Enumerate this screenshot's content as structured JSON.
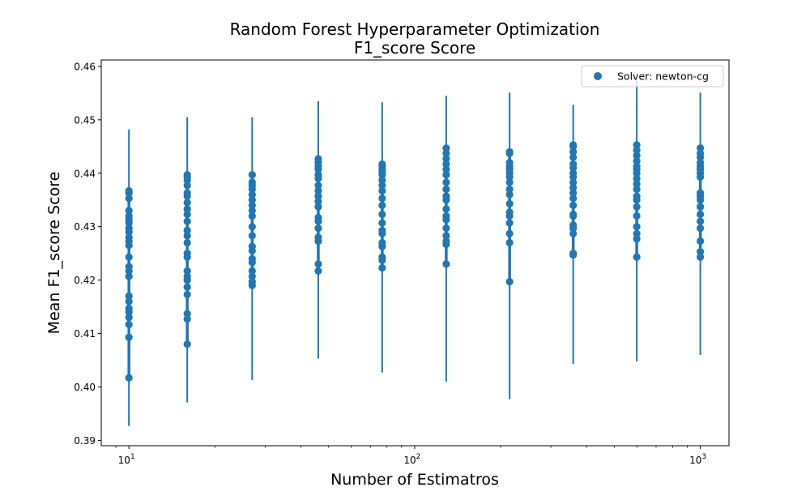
{
  "chart_data": {
    "type": "scatter",
    "title": [
      "Random Forest Hyperparameter Optimization",
      "F1_score Score"
    ],
    "xlabel": "Number of Estimatros",
    "ylabel": "Mean F1_score Score",
    "x_scale": "log",
    "xlim": [
      8,
      1260
    ],
    "ylim": [
      0.389,
      0.4612
    ],
    "y_ticks": [
      0.39,
      0.4,
      0.41,
      0.42,
      0.43,
      0.44,
      0.45,
      0.46
    ],
    "y_tick_labels": [
      "0.39",
      "0.40",
      "0.41",
      "0.42",
      "0.43",
      "0.44",
      "0.45",
      "0.46"
    ],
    "x_major_ticks": [
      10,
      100,
      1000
    ],
    "x_major_tick_labels": [
      {
        "base": "10",
        "exp": "1"
      },
      {
        "base": "10",
        "exp": "2"
      },
      {
        "base": "10",
        "exp": "3"
      }
    ],
    "x_minor_ticks": [
      9,
      20,
      30,
      40,
      50,
      60,
      70,
      80,
      90,
      200,
      300,
      400,
      500,
      600,
      700,
      800,
      900
    ],
    "legend": {
      "position": "top-right",
      "label": "Solver: newton-cg"
    },
    "color": "#1f77b4",
    "grid": false,
    "series": [
      {
        "name": "Solver: newton-cg",
        "groups": [
          {
            "x": 10,
            "y_min": 0.3927,
            "y_max": 0.4482,
            "y": [
              0.4017,
              0.4093,
              0.4117,
              0.413,
              0.414,
              0.4147,
              0.416,
              0.417,
              0.4207,
              0.4217,
              0.4225,
              0.4243,
              0.4265,
              0.4273,
              0.428,
              0.429,
              0.4297,
              0.4307,
              0.4313,
              0.432,
              0.433,
              0.4353,
              0.4363,
              0.4367
            ]
          },
          {
            "x": 16,
            "y_min": 0.3971,
            "y_max": 0.4505,
            "y": [
              0.408,
              0.4127,
              0.4137,
              0.4173,
              0.4187,
              0.42,
              0.4207,
              0.4217,
              0.4243,
              0.425,
              0.427,
              0.4283,
              0.4293,
              0.431,
              0.4323,
              0.4333,
              0.4345,
              0.4357,
              0.4363,
              0.4377,
              0.4387,
              0.4393,
              0.4397
            ]
          },
          {
            "x": 27,
            "y_min": 0.4013,
            "y_max": 0.4505,
            "y": [
              0.419,
              0.4197,
              0.4207,
              0.4217,
              0.4233,
              0.424,
              0.4255,
              0.4263,
              0.4283,
              0.43,
              0.432,
              0.433,
              0.434,
              0.435,
              0.436,
              0.437,
              0.4377,
              0.4383,
              0.4397
            ]
          },
          {
            "x": 46,
            "y_min": 0.4053,
            "y_max": 0.4535,
            "y": [
              0.4217,
              0.423,
              0.4273,
              0.428,
              0.4297,
              0.431,
              0.4317,
              0.4337,
              0.4347,
              0.4357,
              0.4367,
              0.4377,
              0.439,
              0.4397,
              0.4407,
              0.4413,
              0.442,
              0.4427
            ]
          },
          {
            "x": 77,
            "y_min": 0.4027,
            "y_max": 0.4533,
            "y": [
              0.4223,
              0.4237,
              0.4243,
              0.4263,
              0.427,
              0.4287,
              0.4293,
              0.4307,
              0.4323,
              0.434,
              0.4353,
              0.4367,
              0.4377,
              0.4387,
              0.4397,
              0.4403,
              0.4407,
              0.4413,
              0.4417
            ]
          },
          {
            "x": 129,
            "y_min": 0.401,
            "y_max": 0.4545,
            "y": [
              0.423,
              0.4267,
              0.4273,
              0.4283,
              0.4297,
              0.4313,
              0.432,
              0.4333,
              0.435,
              0.4357,
              0.437,
              0.4383,
              0.4397,
              0.4407,
              0.4417,
              0.4427,
              0.4437,
              0.4447
            ]
          },
          {
            "x": 215,
            "y_min": 0.3977,
            "y_max": 0.4551,
            "y": [
              0.4197,
              0.427,
              0.4287,
              0.4307,
              0.432,
              0.4327,
              0.4343,
              0.436,
              0.437,
              0.4383,
              0.4393,
              0.44,
              0.4407,
              0.4413,
              0.442,
              0.4437,
              0.444
            ]
          },
          {
            "x": 359,
            "y_min": 0.4043,
            "y_max": 0.4528,
            "y": [
              0.4247,
              0.425,
              0.4287,
              0.4297,
              0.4303,
              0.432,
              0.4323,
              0.434,
              0.4353,
              0.4363,
              0.4373,
              0.4383,
              0.4393,
              0.44,
              0.441,
              0.4417,
              0.443,
              0.444,
              0.445,
              0.4453
            ]
          },
          {
            "x": 599,
            "y_min": 0.4048,
            "y_max": 0.4573,
            "y": [
              0.4243,
              0.4277,
              0.4287,
              0.43,
              0.432,
              0.4337,
              0.435,
              0.4357,
              0.437,
              0.438,
              0.439,
              0.44,
              0.4407,
              0.4413,
              0.4423,
              0.4433,
              0.4443,
              0.4453
            ]
          },
          {
            "x": 1000,
            "y_min": 0.406,
            "y_max": 0.4551,
            "y": [
              0.4243,
              0.4253,
              0.4273,
              0.4297,
              0.431,
              0.4323,
              0.4337,
              0.435,
              0.4357,
              0.4363,
              0.4393,
              0.44,
              0.4407,
              0.4413,
              0.442,
              0.443,
              0.4437,
              0.4447
            ]
          }
        ]
      }
    ]
  }
}
